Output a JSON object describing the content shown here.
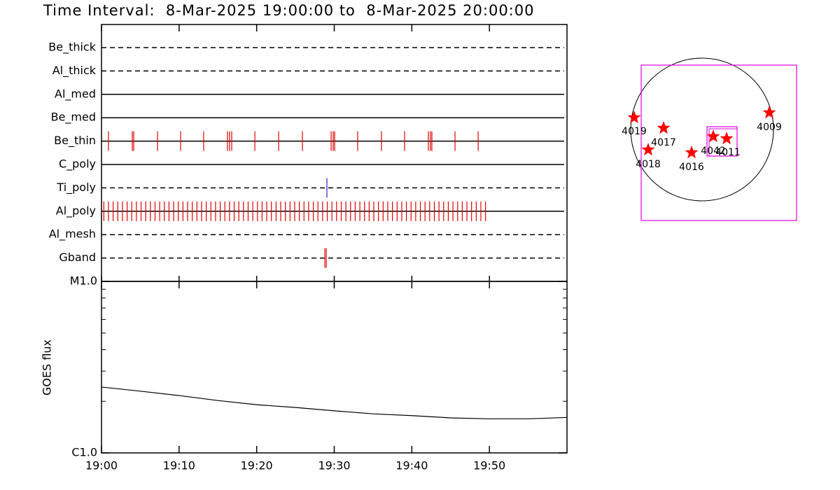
{
  "title": "Time Interval:  8-Mar-2025 19:00:00 to  8-Mar-2025 20:00:00",
  "chart_data": [
    {
      "type": "timeline",
      "xlim": [
        "19:00",
        "20:00"
      ],
      "event_color": "#e00000",
      "filters": [
        {
          "name": "Be_thick",
          "style": "dashed",
          "events": []
        },
        {
          "name": "Al_thick",
          "style": "dashed",
          "events": []
        },
        {
          "name": "Al_med",
          "style": "solid",
          "events": []
        },
        {
          "name": "Be_med",
          "style": "solid",
          "events": []
        },
        {
          "name": "Be_thin",
          "style": "solid",
          "events": [
            "19:00:54",
            "19:03:58",
            "19:04:09",
            "19:07:13",
            "19:10:12",
            "19:13:10",
            "19:16:14",
            "19:16:30",
            "19:16:47",
            "19:19:46",
            "19:22:50",
            "19:25:54",
            "19:29:36",
            "19:29:52",
            "19:30:03",
            "19:33:01",
            "19:36:05",
            "19:39:04",
            "19:42:08",
            "19:42:24",
            "19:42:35",
            "19:45:34",
            "19:48:33"
          ]
        },
        {
          "name": "C_poly",
          "style": "solid",
          "events": []
        },
        {
          "name": "Ti_poly",
          "style": "dashed",
          "color": "#2020c0",
          "events": [
            "19:29:03"
          ]
        },
        {
          "name": "Al_poly",
          "style": "solid",
          "events": [
            "19:00:18",
            "19:00:54",
            "19:01:30",
            "19:02:06",
            "19:02:42",
            "19:03:18",
            "19:03:54",
            "19:04:30",
            "19:05:06",
            "19:05:42",
            "19:06:18",
            "19:06:54",
            "19:07:30",
            "19:08:06",
            "19:08:42",
            "19:09:18",
            "19:09:54",
            "19:10:30",
            "19:11:06",
            "19:11:42",
            "19:12:18",
            "19:12:54",
            "19:13:30",
            "19:14:06",
            "19:14:42",
            "19:15:18",
            "19:15:54",
            "19:16:30",
            "19:17:06",
            "19:17:42",
            "19:18:18",
            "19:18:54",
            "19:19:30",
            "19:20:06",
            "19:20:42",
            "19:21:18",
            "19:21:54",
            "19:22:30",
            "19:23:06",
            "19:23:42",
            "19:24:18",
            "19:24:54",
            "19:25:30",
            "19:26:06",
            "19:26:42",
            "19:27:18",
            "19:27:54",
            "19:28:30",
            "19:29:06",
            "19:29:42",
            "19:30:18",
            "19:30:54",
            "19:31:30",
            "19:32:06",
            "19:32:42",
            "19:33:18",
            "19:33:54",
            "19:34:30",
            "19:35:06",
            "19:35:42",
            "19:36:18",
            "19:36:54",
            "19:37:30",
            "19:38:06",
            "19:38:42",
            "19:39:18",
            "19:39:54",
            "19:40:30",
            "19:41:06",
            "19:41:42",
            "19:42:18",
            "19:42:54",
            "19:43:30",
            "19:44:06",
            "19:44:42",
            "19:45:18",
            "19:45:54",
            "19:46:30",
            "19:47:06",
            "19:47:42",
            "19:48:18",
            "19:48:54",
            "19:49:30"
          ]
        },
        {
          "name": "Al_mesh",
          "style": "dashed",
          "events": []
        },
        {
          "name": "Gband",
          "style": "dashed",
          "events": [
            "19:28:47",
            "19:28:58"
          ]
        }
      ]
    },
    {
      "type": "line",
      "y_label": "GOES flux",
      "log_scale": true,
      "color": "#000000",
      "xlim": [
        "19:00",
        "20:00"
      ],
      "xticks": [
        "19:00",
        "19:10",
        "19:20",
        "19:30",
        "19:40",
        "19:50"
      ],
      "ylim": [
        1e-06,
        1e-05
      ],
      "yticks": [
        {
          "value": 1e-06,
          "label": "C1.0"
        },
        {
          "value": 1e-05,
          "label": "M1.0"
        }
      ],
      "x": [
        "19:00",
        "19:05",
        "19:10",
        "19:15",
        "19:20",
        "19:25",
        "19:30",
        "19:35",
        "19:40",
        "19:45",
        "19:50",
        "19:55",
        "20:00"
      ],
      "values": [
        2.42e-06,
        2.29e-06,
        2.16e-06,
        2.02e-06,
        1.91e-06,
        1.84e-06,
        1.76e-06,
        1.69e-06,
        1.65e-06,
        1.6e-06,
        1.58e-06,
        1.58e-06,
        1.61e-06
      ]
    }
  ],
  "map": {
    "star_color": "#ff0000",
    "box_color": "#e000e0",
    "regions": [
      {
        "label": "4019"
      },
      {
        "label": "4017"
      },
      {
        "label": "4018"
      },
      {
        "label": "4016"
      },
      {
        "label": "4042"
      },
      {
        "label": "4011"
      },
      {
        "label": "4009"
      }
    ]
  }
}
